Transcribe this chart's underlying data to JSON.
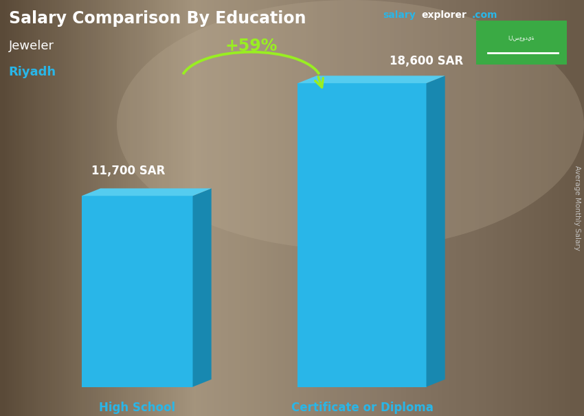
{
  "title": "Salary Comparison By Education",
  "subtitle_job": "Jeweler",
  "subtitle_city": "Riyadh",
  "site_salary": "salary",
  "site_explorer": "explorer",
  "site_dot_com": ".com",
  "ylabel": "Average Monthly Salary",
  "categories": [
    "High School",
    "Certificate or Diploma"
  ],
  "values": [
    11700,
    18600
  ],
  "value_labels": [
    "11,700 SAR",
    "18,600 SAR"
  ],
  "bar_color_main": "#29B6E8",
  "bar_color_dark": "#1888B0",
  "bar_color_top": "#55CCEF",
  "pct_label": "+59%",
  "pct_color": "#99EE22",
  "arrow_color": "#99EE22",
  "bg_top": "#a09080",
  "bg_bottom": "#6a5a48",
  "title_color": "#FFFFFF",
  "job_color": "#FFFFFF",
  "city_color": "#29B6E8",
  "cat_color": "#29B6E8",
  "val_color": "#FFFFFF",
  "flag_color": "#3aaa44",
  "site_c1": "#29B6E8",
  "site_c2": "#FFFFFF",
  "site_c3": "#29B6E8",
  "ylabel_color": "#CCCCCC"
}
